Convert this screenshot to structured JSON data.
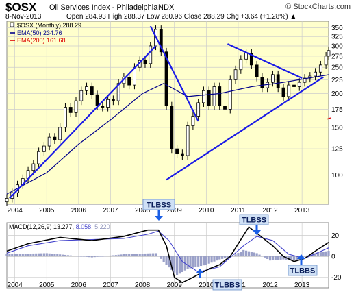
{
  "header": {
    "symbol": "$OSX",
    "title": "Oil Services Index - Philadelphia",
    "exchange": "INDX",
    "logo": "© StockCharts.com",
    "date": "8-Nov-2013",
    "ohlc": "Open 284.93  High 288.37  Low 280.96  Close 288.29  Chg +3.64 (+1.28%) ▲"
  },
  "legend": {
    "main": "$OSX (Monthly) 288.29",
    "ema50": "EMA(50) 234.76",
    "ema200": "EMA(200) 161.68"
  },
  "macd_legend": {
    "prefix": "MACD(12,26,9) 13.277,",
    "signal": "8.058,",
    "hist": "5.220"
  },
  "annotations": [
    {
      "text": "TLBSS",
      "kind": "sell"
    },
    {
      "text": "TLBBS",
      "kind": "buy"
    },
    {
      "text": "TLBSS",
      "kind": "sell"
    },
    {
      "text": "TLBBS",
      "kind": "buy"
    }
  ],
  "colors": {
    "panel_bg": "#ffffcc",
    "candle": "#000000",
    "ema50": "#00008b",
    "ema200": "#dd0000",
    "trendline": "#1a1ae6",
    "macd": "#000000",
    "signal": "#4444cc",
    "histogram": "#9aa0c8",
    "annotation_box": "#cfe0f5",
    "annotation_arrow": "#1a5fe6"
  },
  "chart_data": [
    {
      "type": "candlestick",
      "title": "$OSX (Monthly)",
      "scale": "log",
      "ylim": [
        78,
        370
      ],
      "x_range": [
        "2003-10",
        "2013-11"
      ],
      "xticks": [
        "2004",
        "2005",
        "2006",
        "2007",
        "2008",
        "2009",
        "2010",
        "2011",
        "2012",
        "2013"
      ],
      "yticks": [
        100,
        125,
        150,
        175,
        200,
        225,
        250,
        275,
        300,
        325,
        350
      ],
      "grid": true,
      "series": [
        {
          "name": "$OSX (Monthly)",
          "x": [
            "2003-10",
            "2003-12",
            "2004-02",
            "2004-04",
            "2004-06",
            "2004-08",
            "2004-10",
            "2004-12",
            "2005-02",
            "2005-04",
            "2005-06",
            "2005-08",
            "2005-10",
            "2005-12",
            "2006-02",
            "2006-04",
            "2006-06",
            "2006-08",
            "2006-10",
            "2006-12",
            "2007-02",
            "2007-04",
            "2007-06",
            "2007-08",
            "2007-10",
            "2007-12",
            "2008-02",
            "2008-04",
            "2008-06",
            "2008-08",
            "2008-10",
            "2008-12",
            "2009-02",
            "2009-04",
            "2009-06",
            "2009-08",
            "2009-10",
            "2009-12",
            "2010-02",
            "2010-04",
            "2010-06",
            "2010-08",
            "2010-10",
            "2010-12",
            "2011-02",
            "2011-04",
            "2011-06",
            "2011-08",
            "2011-10",
            "2011-12",
            "2012-02",
            "2012-04",
            "2012-06",
            "2012-08",
            "2012-10",
            "2012-12",
            "2013-02",
            "2013-04",
            "2013-06",
            "2013-08",
            "2013-10",
            "2013-11"
          ],
          "y": [
            82,
            86,
            92,
            97,
            104,
            110,
            122,
            128,
            138,
            135,
            150,
            178,
            170,
            188,
            205,
            212,
            198,
            180,
            178,
            190,
            188,
            218,
            230,
            215,
            250,
            265,
            258,
            300,
            345,
            285,
            180,
            125,
            120,
            118,
            152,
            165,
            185,
            205,
            180,
            212,
            180,
            175,
            225,
            245,
            268,
            282,
            255,
            230,
            210,
            220,
            235,
            210,
            195,
            215,
            212,
            220,
            228,
            232,
            240,
            255,
            275,
            288.29
          ]
        },
        {
          "name": "EMA(50)",
          "x": [
            "2003-10",
            "2005-01",
            "2006-01",
            "2007-01",
            "2008-01",
            "2008-09",
            "2009-06",
            "2010-06",
            "2011-06",
            "2012-06",
            "2013-11"
          ],
          "y": [
            85,
            102,
            130,
            160,
            200,
            218,
            195,
            200,
            212,
            220,
            234.76
          ]
        },
        {
          "name": "EMA(200)",
          "x": [
            "2013-11"
          ],
          "y": [
            161.68
          ]
        }
      ],
      "trendlines": [
        {
          "from": [
            "2003-11",
            82
          ],
          "to": [
            "2008-06",
            300
          ]
        },
        {
          "from": [
            "2008-04",
            355
          ],
          "to": [
            "2009-10",
            158
          ]
        },
        {
          "from": [
            "2008-10",
            96
          ],
          "to": [
            "2013-09",
            230
          ]
        },
        {
          "from": [
            "2010-09",
            305
          ],
          "to": [
            "2013-01",
            228
          ]
        }
      ]
    },
    {
      "type": "line",
      "title": "MACD(12,26,9)",
      "ylim": [
        -30,
        32
      ],
      "yticks": [
        -20,
        0,
        20
      ],
      "series": [
        {
          "name": "MACD",
          "x": [
            "2003-10",
            "2004-06",
            "2005-06",
            "2006-06",
            "2007-06",
            "2008-03",
            "2008-07",
            "2008-10",
            "2009-01",
            "2009-04",
            "2009-08",
            "2010-02",
            "2010-06",
            "2010-10",
            "2011-03",
            "2011-05",
            "2011-09",
            "2012-02",
            "2012-06",
            "2012-10",
            "2013-02",
            "2013-06",
            "2013-11"
          ],
          "y": [
            5,
            12,
            18,
            15,
            19,
            25,
            25,
            10,
            -20,
            -25,
            -20,
            -12,
            -8,
            0,
            20,
            28,
            20,
            10,
            0,
            -5,
            -2,
            5,
            13.277
          ]
        },
        {
          "name": "Signal",
          "x": [
            "2003-10",
            "2004-06",
            "2005-06",
            "2006-06",
            "2007-06",
            "2008-03",
            "2008-07",
            "2008-11",
            "2009-04",
            "2009-10",
            "2010-06",
            "2011-03",
            "2011-08",
            "2012-02",
            "2012-08",
            "2013-02",
            "2013-11"
          ],
          "y": [
            3,
            10,
            15,
            16,
            17,
            21,
            24,
            15,
            -5,
            -15,
            -10,
            10,
            19,
            15,
            2,
            -2,
            8.058
          ]
        },
        {
          "name": "Histogram",
          "x": [
            "2003-10",
            "2005-01",
            "2006-06",
            "2007-06",
            "2008-06",
            "2008-10",
            "2009-02",
            "2009-06",
            "2010-01",
            "2010-06",
            "2010-10",
            "2011-03",
            "2011-08",
            "2012-01",
            "2012-06",
            "2012-11",
            "2013-04",
            "2013-11"
          ],
          "y": [
            2,
            3,
            -1,
            2,
            3,
            -8,
            -18,
            -12,
            -8,
            -3,
            -1,
            6,
            3,
            -4,
            -3,
            -4,
            2,
            5.22
          ]
        }
      ]
    }
  ]
}
